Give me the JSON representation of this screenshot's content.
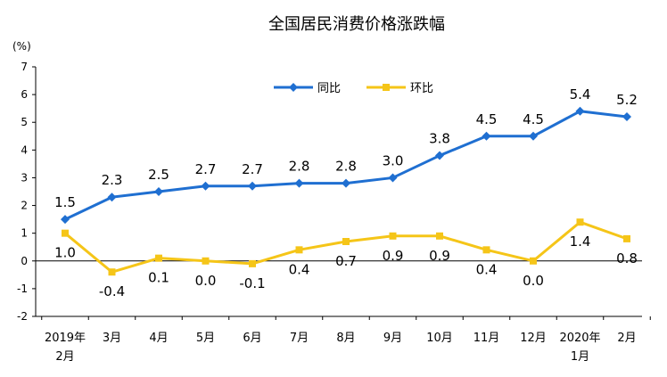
{
  "chart_data": {
    "type": "line",
    "title": "全国居民消费价格涨跌幅",
    "unit_label": "(%)",
    "categories": [
      [
        "2019年",
        "2月"
      ],
      [
        "3月"
      ],
      [
        "4月"
      ],
      [
        "5月"
      ],
      [
        "6月"
      ],
      [
        "7月"
      ],
      [
        "8月"
      ],
      [
        "9月"
      ],
      [
        "10月"
      ],
      [
        "11月"
      ],
      [
        "12月"
      ],
      [
        "2020年",
        "1月"
      ],
      [
        "2月"
      ]
    ],
    "ylim": [
      -2,
      7
    ],
    "yticks": [
      -2,
      -1,
      0,
      1,
      2,
      3,
      4,
      5,
      6,
      7
    ],
    "grid": false,
    "legend_position": "top-center",
    "series": [
      {
        "name": "同比",
        "color": "#1F6FD1",
        "marker": "diamond",
        "values": [
          1.5,
          2.3,
          2.5,
          2.7,
          2.7,
          2.8,
          2.8,
          3.0,
          3.8,
          4.5,
          4.5,
          5.4,
          5.2
        ],
        "labels": [
          "1.5",
          "2.3",
          "2.5",
          "2.7",
          "2.7",
          "2.8",
          "2.8",
          "3.0",
          "3.8",
          "4.5",
          "4.5",
          "5.4",
          "5.2"
        ],
        "label_position": "above"
      },
      {
        "name": "环比",
        "color": "#F5C518",
        "marker": "square",
        "values": [
          1.0,
          -0.4,
          0.1,
          0.0,
          -0.1,
          0.4,
          0.7,
          0.9,
          0.9,
          0.4,
          0.0,
          1.4,
          0.8
        ],
        "labels": [
          "1.0",
          "-0.4",
          "0.1",
          "0.0",
          "-0.1",
          "0.4",
          "0.7",
          "0.9",
          "0.9",
          "0.4",
          "0.0",
          "1.4",
          "0.8"
        ],
        "label_position": "below"
      }
    ]
  }
}
